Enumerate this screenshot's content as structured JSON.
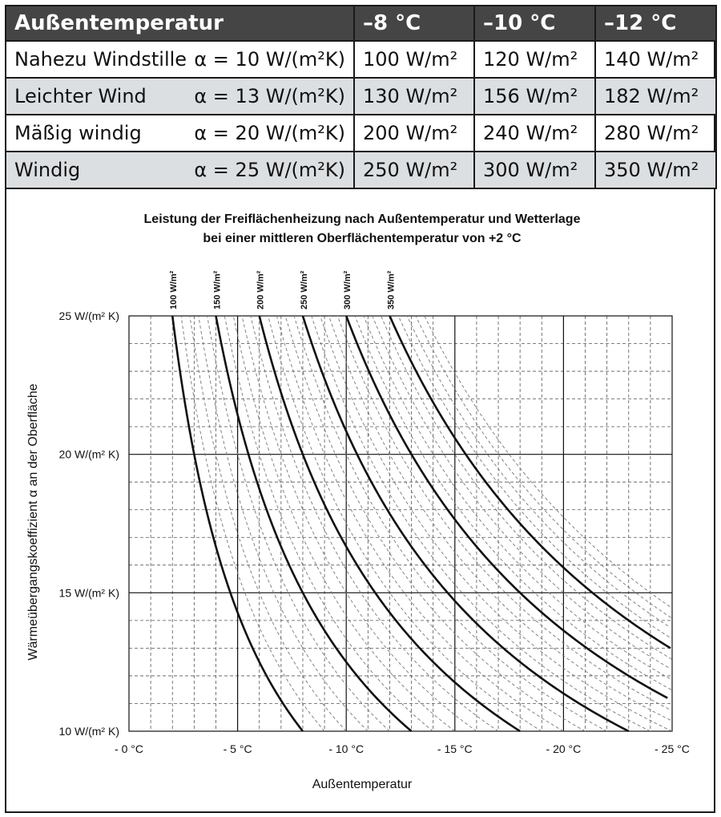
{
  "table": {
    "header": {
      "label": "Außentemperatur",
      "temps": [
        "–8 °C",
        "–10 °C",
        "–12 °C"
      ]
    },
    "rows": [
      {
        "condition": "Nahezu Windstille",
        "alpha": "α = 10 W/(m²K)",
        "values": [
          "100 W/m²",
          "120 W/m²",
          "140 W/m²"
        ]
      },
      {
        "condition": "Leichter Wind",
        "alpha": "α = 13 W/(m²K)",
        "values": [
          "130 W/m²",
          "156 W/m²",
          "182 W/m²"
        ]
      },
      {
        "condition": "Mäßig windig",
        "alpha": "α = 20 W/(m²K)",
        "values": [
          "200 W/m²",
          "240 W/m²",
          "280 W/m²"
        ]
      },
      {
        "condition": "Windig",
        "alpha": "α = 25 W/(m²K)",
        "values": [
          "250 W/m²",
          "300 W/m²",
          "350 W/m²"
        ]
      }
    ],
    "shade_color": "#dcdfe2",
    "header_color": "#454545"
  },
  "chart_data": {
    "type": "line",
    "title": "Leistung der Freiflächenheizung nach Außentemperatur und Wetterlage",
    "subtitle": "bei einer mittleren Oberflächentemperatur von +2 °C",
    "xlabel": "Außentemperatur",
    "ylabel": "Wärmeübergangskoeffizient α an der Oberfläche",
    "surface_temp": 2,
    "xlim": [
      0,
      -25
    ],
    "ylim": [
      10,
      25
    ],
    "x_ticks": [
      0,
      -5,
      -10,
      -15,
      -20,
      -25
    ],
    "x_tick_labels": [
      "- 0 °C",
      "- 5 °C",
      "- 10 °C",
      "- 15 °C",
      "- 20 °C",
      "- 25 °C"
    ],
    "y_ticks": [
      10,
      15,
      20,
      25
    ],
    "y_tick_labels": [
      "10 W/(m² K)",
      "15 W/(m² K)",
      "20 W/(m² K)",
      "25 W/(m² K)"
    ],
    "x_minor_step": 1,
    "y_minor_step": 1,
    "grid": true,
    "series": [
      {
        "name": "100 W/m²",
        "power": 100
      },
      {
        "name": "150 W/m²",
        "power": 150
      },
      {
        "name": "200 W/m²",
        "power": 200
      },
      {
        "name": "250 W/m²",
        "power": 250
      },
      {
        "name": "300 W/m²",
        "power": 300
      },
      {
        "name": "350 W/m²",
        "power": 350
      }
    ],
    "intermediate_powers": [
      110,
      120,
      130,
      140,
      160,
      170,
      180,
      190,
      210,
      220,
      230,
      240,
      260,
      270,
      280,
      290,
      310,
      320,
      330,
      340,
      360,
      370,
      380,
      390
    ],
    "curve_color": "#111111",
    "intermediate_color": "#777777"
  }
}
